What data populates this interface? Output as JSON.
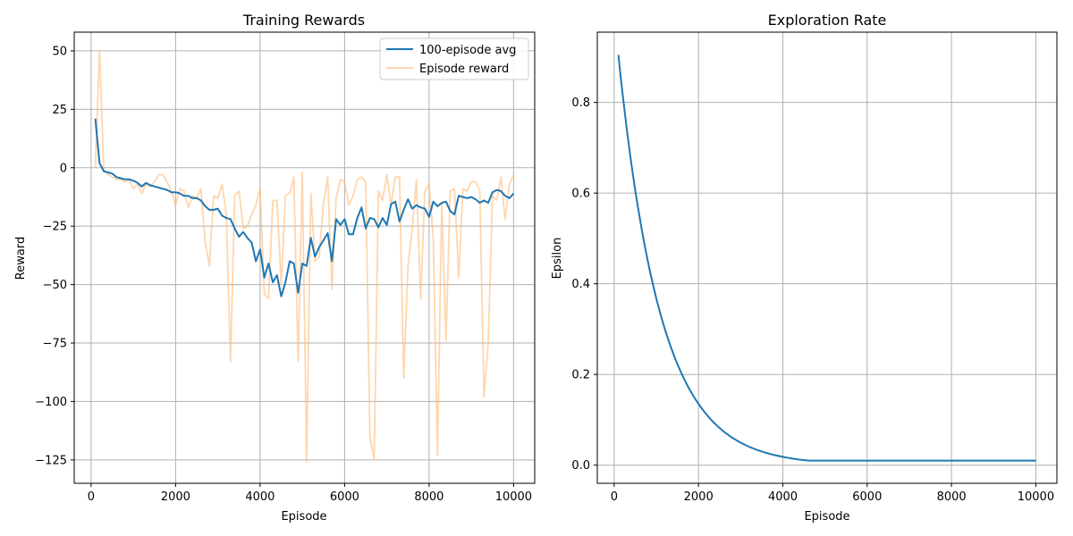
{
  "chart_data": [
    {
      "type": "line",
      "title": "Training Rewards",
      "xlabel": "Episode",
      "ylabel": "Reward",
      "xlim": [
        -400,
        10500
      ],
      "ylim": [
        -135,
        58
      ],
      "xticks": [
        0,
        2000,
        4000,
        6000,
        8000,
        10000
      ],
      "yticks": [
        50,
        25,
        0,
        -25,
        -50,
        -75,
        -100,
        -125
      ],
      "xtick_labels": [
        "0",
        "2000",
        "4000",
        "6000",
        "8000",
        "10000"
      ],
      "ytick_labels": [
        "50",
        "25",
        "0",
        "−25",
        "−50",
        "−75",
        "−100",
        "−125"
      ],
      "grid": true,
      "legend": "top-right",
      "x": [
        100,
        200,
        300,
        400,
        500,
        600,
        700,
        800,
        900,
        1000,
        1100,
        1200,
        1300,
        1400,
        1500,
        1600,
        1700,
        1800,
        1900,
        2000,
        2100,
        2200,
        2300,
        2400,
        2500,
        2600,
        2700,
        2800,
        2900,
        3000,
        3100,
        3200,
        3300,
        3400,
        3500,
        3600,
        3700,
        3800,
        3900,
        4000,
        4100,
        4200,
        4300,
        4400,
        4500,
        4600,
        4700,
        4800,
        4900,
        5000,
        5100,
        5200,
        5300,
        5400,
        5500,
        5600,
        5700,
        5800,
        5900,
        6000,
        6100,
        6200,
        6300,
        6400,
        6500,
        6600,
        6700,
        6800,
        6900,
        7000,
        7100,
        7200,
        7300,
        7400,
        7500,
        7600,
        7700,
        7800,
        7900,
        8000,
        8100,
        8200,
        8300,
        8400,
        8500,
        8600,
        8700,
        8800,
        8900,
        9000,
        9100,
        9200,
        9300,
        9400,
        9500,
        9600,
        9700,
        9800,
        9900,
        10000
      ],
      "series": [
        {
          "name": "100-episode avg",
          "color": "#1f77b4",
          "alpha": 1,
          "values": [
            21,
            2,
            -1.5,
            -2,
            -2.5,
            -4,
            -4.5,
            -5,
            -5,
            -5.5,
            -6.5,
            -8,
            -6.5,
            -7.5,
            -8,
            -8.5,
            -9,
            -9.5,
            -10.5,
            -10.5,
            -11,
            -12,
            -12,
            -13,
            -13,
            -14,
            -16.5,
            -18,
            -18,
            -17.5,
            -20.5,
            -21.5,
            -22,
            -26,
            -29.5,
            -27.5,
            -30,
            -32,
            -40,
            -35,
            -47,
            -41,
            -49,
            -46,
            -55,
            -49,
            -40,
            -41,
            -53.5,
            -41,
            -42,
            -30,
            -38,
            -34,
            -31,
            -28,
            -40,
            -22,
            -24.5,
            -22,
            -28.5,
            -28.5,
            -21.5,
            -17,
            -26,
            -21.5,
            -22,
            -25.5,
            -21.5,
            -24.5,
            -15.5,
            -14.5,
            -23,
            -18,
            -13.5,
            -17.5,
            -16,
            -17,
            -17.5,
            -21,
            -14.5,
            -16.5,
            -15,
            -14.5,
            -18.5,
            -20,
            -12,
            -12.5,
            -13,
            -12.5,
            -13.5,
            -15,
            -14,
            -15,
            -10.5,
            -9.5,
            -10,
            -12,
            -13,
            -11
          ]
        },
        {
          "name": "Episode reward",
          "color": "#ffbb78",
          "alpha": 0.6,
          "values": [
            0,
            50,
            -1,
            -3,
            -4,
            -5,
            -5,
            -6,
            -5,
            -9,
            -7,
            -11,
            -7,
            -8,
            -6,
            -3,
            -3,
            -6,
            -10,
            -16,
            -9,
            -10,
            -17,
            -12,
            -13,
            -9,
            -32,
            -42,
            -12,
            -13,
            -7,
            -20,
            -83,
            -12,
            -10,
            -26,
            -25,
            -20,
            -16,
            -9,
            -54,
            -56,
            -14,
            -14,
            -50,
            -12,
            -11,
            -4,
            -83,
            -2,
            -126,
            -11,
            -40,
            -38,
            -15,
            -4,
            -52,
            -13,
            -5,
            -6,
            -16,
            -12,
            -5,
            -4,
            -6,
            -115,
            -125,
            -10,
            -14,
            -3,
            -16,
            -4,
            -4,
            -90,
            -42,
            -26,
            -5,
            -56,
            -10,
            -7,
            -30,
            -123,
            -15,
            -74,
            -10,
            -9,
            -47,
            -9,
            -10,
            -6,
            -6,
            -10,
            -98,
            -75,
            -12,
            -14,
            -4,
            -22,
            -7,
            -3
          ]
        }
      ]
    },
    {
      "type": "line",
      "title": "Exploration Rate",
      "xlabel": "Episode",
      "ylabel": "Epsilon",
      "xlim": [
        -400,
        10500
      ],
      "ylim": [
        -0.04,
        0.955
      ],
      "xticks": [
        0,
        2000,
        4000,
        6000,
        8000,
        10000
      ],
      "yticks": [
        0.0,
        0.2,
        0.4,
        0.6,
        0.8
      ],
      "xtick_labels": [
        "0",
        "2000",
        "4000",
        "6000",
        "8000",
        "10000"
      ],
      "ytick_labels": [
        "0.0",
        "0.2",
        "0.4",
        "0.6",
        "0.8"
      ],
      "grid": true,
      "epsilon_start": 1.0,
      "epsilon_decay": 0.999,
      "epsilon_min": 0.01,
      "x_range": [
        100,
        10000
      ],
      "series": [
        {
          "color": "#1f77b4"
        }
      ]
    }
  ]
}
